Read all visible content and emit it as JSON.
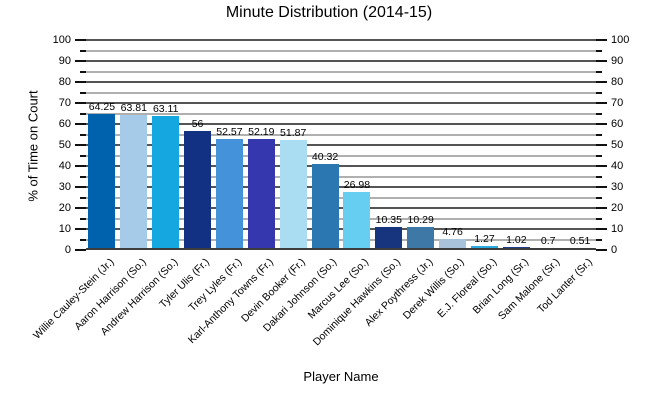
{
  "chart_data": {
    "type": "bar",
    "title": "Minute Distribution (2014-15)",
    "xlabel": "Player Name",
    "ylabel": "% of Time on Court",
    "ylim": [
      0,
      100
    ],
    "y_major_tick_step": 10,
    "y_minor_tick_step": 5,
    "grid": "horizontal major (dark) and minor (light) lines, ticks and labels on both left and right axes",
    "legend": "none",
    "categories": [
      "Willie Cauley-Stein (Jr.)",
      "Aaron Harrison (So.)",
      "Andrew Harrison (So.)",
      "Tyler Ulis (Fr.)",
      "Trey Lyles (Fr.)",
      "Karl-Anthony Towns (Fr.)",
      "Devin Booker (Fr.)",
      "Dakari Johnson (So.)",
      "Marcus Lee (So.)",
      "Dominique Hawkins (So.)",
      "Alex Poythress (Jr.)",
      "Derek Willis (So.)",
      "E.J. Floreal (So.)",
      "Brian Long (Sr.)",
      "Sam Malone (Sr.)",
      "Tod Lanter (Sr.)"
    ],
    "values": [
      64.25,
      63.81,
      63.11,
      56,
      52.57,
      52.19,
      51.87,
      40.32,
      26.98,
      10.35,
      10.29,
      4.76,
      1.27,
      1.02,
      0.7,
      0.51
    ],
    "value_labels": [
      "64.25",
      "63.81",
      "63.11",
      "56",
      "52.57",
      "52.19",
      "51.87",
      "40.32",
      "26.98",
      "10.35",
      "10.29",
      "4.76",
      "1.27",
      "1.02",
      "0.7",
      "0.51"
    ],
    "bar_colors": [
      "#0062ad",
      "#a6cbe9",
      "#14a7e0",
      "#123183",
      "#4492da",
      "#3437ad",
      "#aadcf2",
      "#2b77b2",
      "#66cef0",
      "#17357e",
      "#3e78a6",
      "#a9c2dc",
      "#29aae1",
      "#203c8e",
      "#2e7ac0",
      "#3a45ad"
    ]
  },
  "colors": {
    "background": "#ffffff",
    "grid_major": "#555555",
    "grid_minor": "#b0b0b0",
    "tick": "#111111",
    "text": "#000000"
  }
}
